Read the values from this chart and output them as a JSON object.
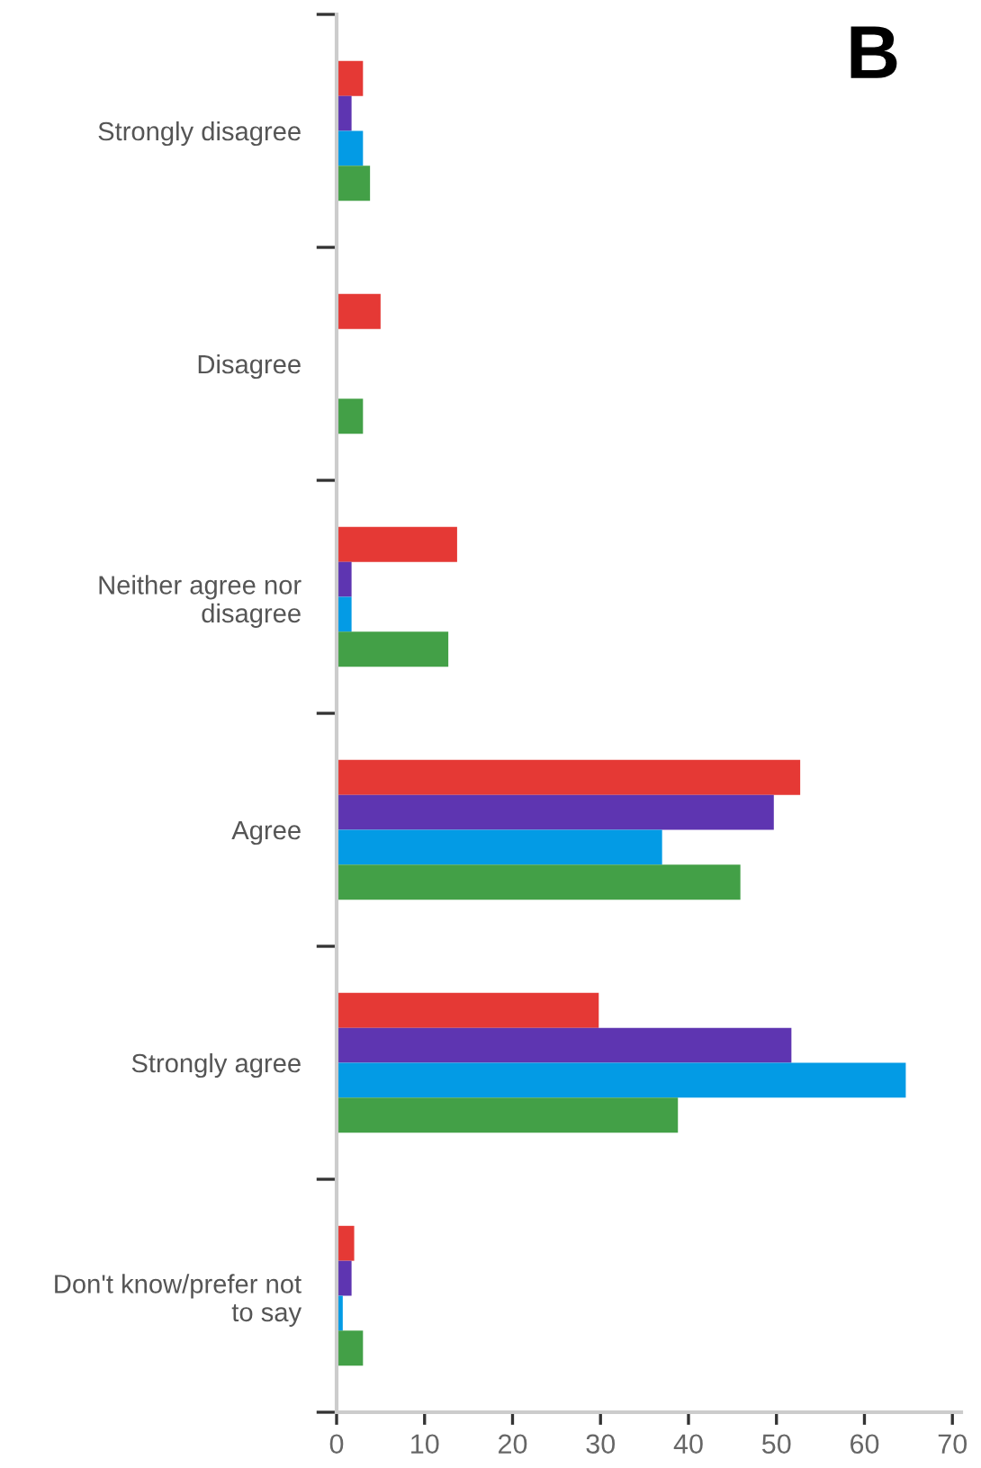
{
  "chart_data": {
    "type": "bar",
    "orientation": "horizontal",
    "title": "B",
    "categories": [
      "Strongly disagree",
      "Disagree",
      "Neither agree nor\ndisagree",
      "Agree",
      "Strongly agree",
      "Don't know/prefer not\nto say"
    ],
    "series": [
      {
        "color": "#e53935",
        "values": [
          3,
          5,
          13.7,
          52.7,
          29.8,
          2
        ]
      },
      {
        "color": "#5e35b1",
        "values": [
          1.7,
          0,
          1.7,
          49.7,
          51.7,
          1.7
        ]
      },
      {
        "color": "#039be5",
        "values": [
          3,
          0,
          1.7,
          37,
          64.7,
          0.7
        ]
      },
      {
        "color": "#43a047",
        "values": [
          3.8,
          3,
          12.7,
          45.9,
          38.8,
          3
        ]
      }
    ],
    "xlim": [
      0,
      71
    ],
    "xticks": [
      0,
      10,
      20,
      30,
      40,
      50,
      60,
      70
    ],
    "grid": false,
    "legend": false
  }
}
